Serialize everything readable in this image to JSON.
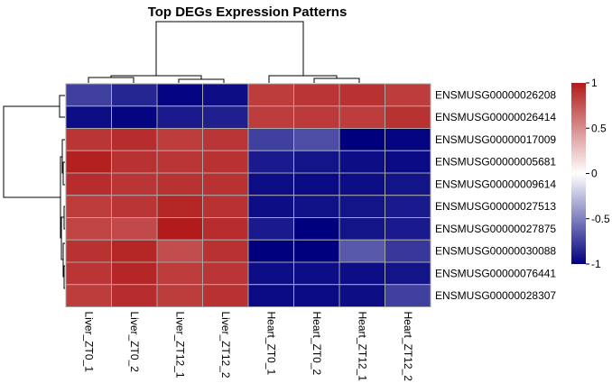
{
  "chart_data": {
    "type": "heatmap",
    "title": "Top DEGs Expression Patterns",
    "columns": [
      "Liver_ZT0_1",
      "Liver_ZT0_2",
      "Liver_ZT12_1",
      "Liver_ZT12_2",
      "Heart_ZT0_1",
      "Heart_ZT0_2",
      "Heart_ZT12_1",
      "Heart_ZT12_2"
    ],
    "rows": [
      "ENSMUSG00000026208",
      "ENSMUSG00000026414",
      "ENSMUSG00000017009",
      "ENSMUSG00000005681",
      "ENSMUSG00000009614",
      "ENSMUSG00000027513",
      "ENSMUSG00000027875",
      "ENSMUSG00000030088",
      "ENSMUSG00000076441",
      "ENSMUSG00000028307"
    ],
    "values": [
      [
        -0.75,
        -0.85,
        -0.98,
        -0.95,
        0.85,
        0.88,
        0.9,
        0.85
      ],
      [
        -0.95,
        -0.98,
        -0.9,
        -0.88,
        0.85,
        0.87,
        0.85,
        0.9
      ],
      [
        0.88,
        0.92,
        0.85,
        0.88,
        -0.75,
        -0.7,
        -1.0,
        -0.98
      ],
      [
        0.98,
        0.9,
        0.88,
        0.9,
        -0.9,
        -0.92,
        -0.95,
        -0.96
      ],
      [
        0.92,
        0.88,
        0.9,
        0.9,
        -0.95,
        -0.96,
        -0.95,
        -0.92
      ],
      [
        0.85,
        0.88,
        0.95,
        0.9,
        -0.95,
        -0.93,
        -0.92,
        -0.9
      ],
      [
        0.82,
        0.8,
        1.0,
        0.92,
        -0.9,
        -1.0,
        -0.92,
        -0.9
      ],
      [
        0.9,
        0.95,
        0.78,
        0.9,
        -1.0,
        -1.0,
        -0.65,
        -0.78
      ],
      [
        0.88,
        0.95,
        0.85,
        0.88,
        -0.95,
        -0.95,
        -0.95,
        -0.92
      ],
      [
        0.85,
        0.92,
        0.85,
        0.9,
        -0.96,
        -0.96,
        -0.95,
        -0.75
      ]
    ],
    "scale": {
      "min": -1,
      "max": 1,
      "low_color": "#00007f",
      "mid_color": "#ffffff",
      "high_color": "#b11b1b"
    },
    "legend": {
      "ticks": [
        1,
        0.5,
        0,
        -0.5,
        -1
      ],
      "tick_labels": [
        "1",
        "0.5",
        "0",
        "-0.5",
        "-1"
      ],
      "placement": "right"
    },
    "column_dendrogram": true,
    "row_dendrogram": true,
    "grid": true
  }
}
